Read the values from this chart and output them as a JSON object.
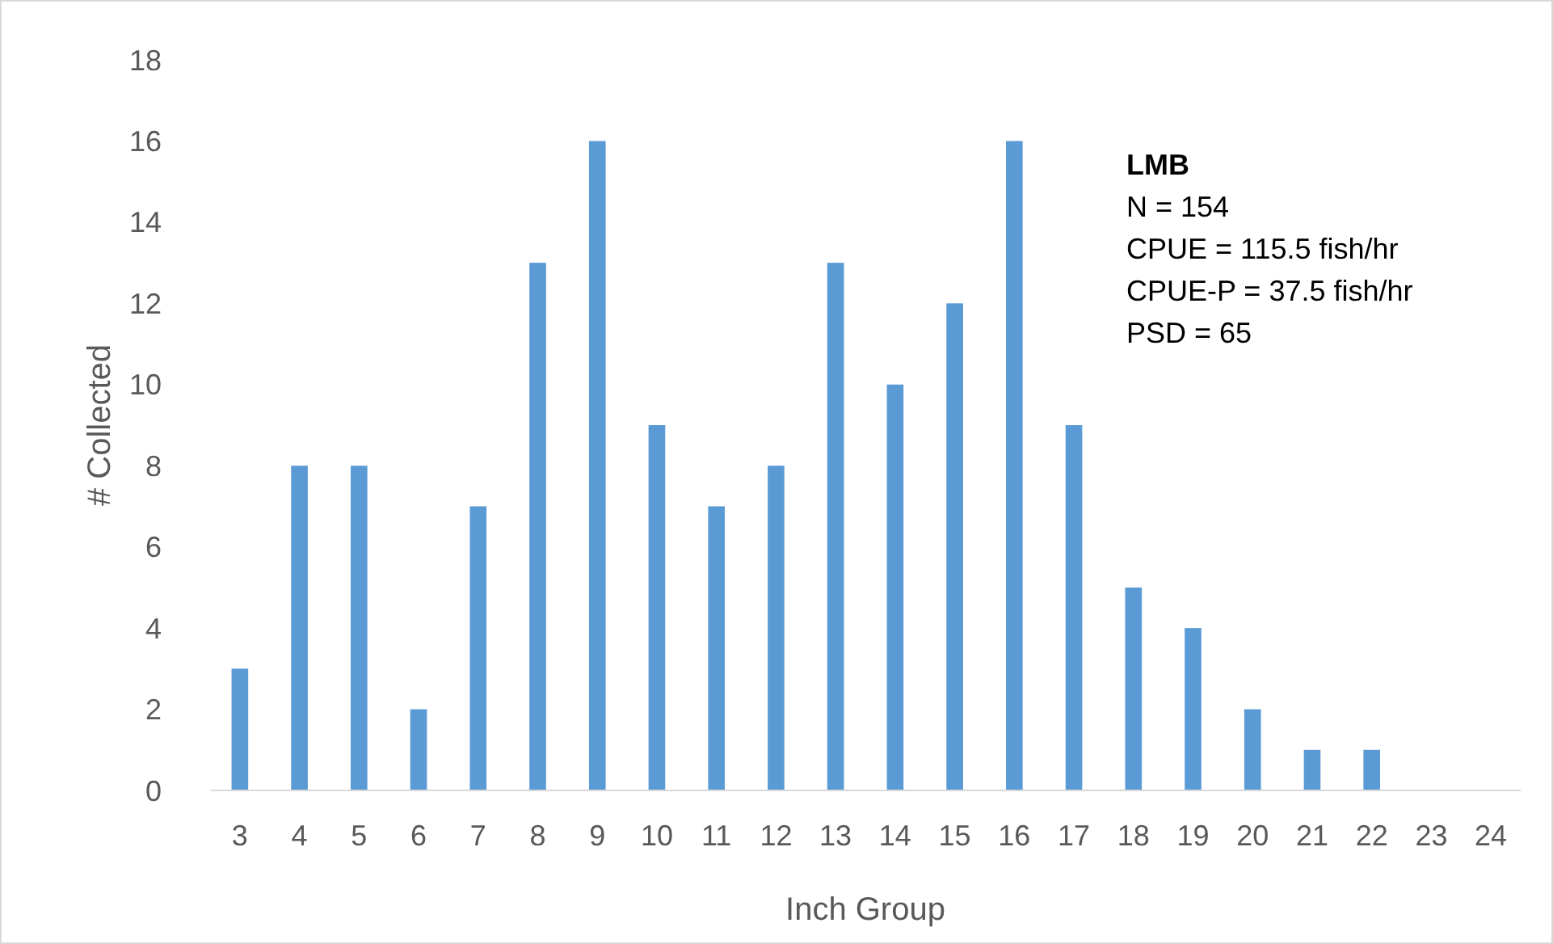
{
  "chart_data": {
    "type": "bar",
    "xlabel": "Inch Group",
    "ylabel": "# Collected",
    "categories": [
      "3",
      "4",
      "5",
      "6",
      "7",
      "8",
      "9",
      "10",
      "11",
      "12",
      "13",
      "14",
      "15",
      "16",
      "17",
      "18",
      "19",
      "20",
      "21",
      "22",
      "23",
      "24"
    ],
    "values": [
      3,
      8,
      8,
      2,
      7,
      13,
      16,
      9,
      7,
      8,
      13,
      10,
      12,
      16,
      9,
      5,
      4,
      2,
      1,
      1,
      0,
      0
    ],
    "color": "#5b9bd5",
    "ylim": [
      0,
      18
    ],
    "yticks": [
      0,
      2,
      4,
      6,
      8,
      10,
      12,
      14,
      16,
      18
    ],
    "grid": false,
    "annotations": [
      "LMB",
      "N = 154",
      "CPUE = 115.5 fish/hr",
      "CPUE-P = 37.5 fish/hr",
      "PSD = 65"
    ]
  }
}
